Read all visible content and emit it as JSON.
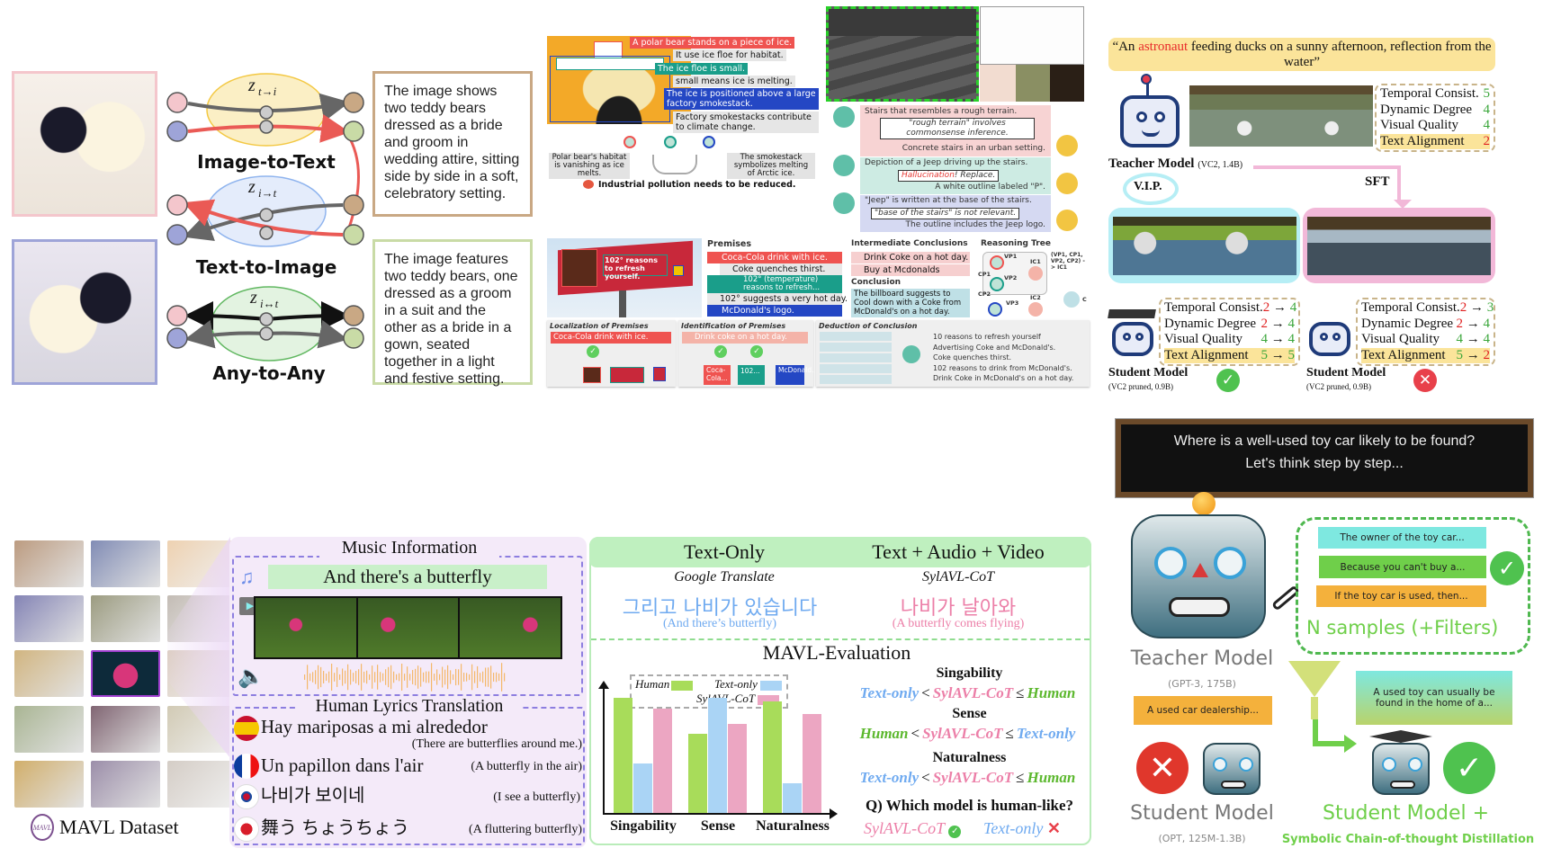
{
  "panel_multimodal": {
    "z_top": "z",
    "z_top_sub": "t→i",
    "z_mid": "z",
    "z_mid_sub": "i→t",
    "z_bot": "z",
    "z_bot_sub": "i↔t",
    "label_top": "Image-to-Text",
    "label_mid": "Text-to-Image",
    "label_bot": "Any-to-Any",
    "caption_1": "The image shows two teddy bears dressed as a bride and groom in wedding attire, sitting side by side in a soft, celebratory setting.",
    "caption_2": "The image features two teddy bears, one dressed as a groom in a suit and the other as a bride in a gown, seated together in a light and festive setting.",
    "colors": {
      "pink": "#f4c6cc",
      "blue": "#9ea4d8",
      "tan": "#c9a884",
      "green": "#c9dba6",
      "red_arrow": "#ea5a55"
    }
  },
  "panel_polar_bear": {
    "claims": [
      {
        "text": "A polar bear stands on a piece of ice.",
        "color": "#ef5350"
      },
      {
        "text": "It use ice floe for habitat.",
        "color": "#e6e6e6"
      },
      {
        "text": "The ice floe is small.",
        "color": "#1a9e8a"
      },
      {
        "text": "small means ice is melting.",
        "color": "#e6e6e6"
      },
      {
        "text": "The ice is positioned above a large factory smokestack.",
        "color": "#2447c4"
      },
      {
        "text": "Factory smokestacks contribute to climate change.",
        "color": "#e6e6e6"
      }
    ],
    "left_conclusion": "Polar bear's habitat is vanishing as ice melts.",
    "right_conclusion": "The smokestack symbolizes melting of Arctic ice.",
    "final": "Industrial pollution needs to be reduced."
  },
  "panel_stairs": {
    "rows": [
      {
        "first": "Stairs that resembles a rough terrain.",
        "note": "\"rough terrain\" involves commonsense inference.",
        "last": "Concrete stairs in an urban setting.",
        "color": "#f7d3d3"
      },
      {
        "first": "Depiction of a Jeep driving up the stairs.",
        "note_red": "Hallucination",
        "note": "! Replace.",
        "last": "A white outline labeled \"P\".",
        "color": "#cdebe3"
      },
      {
        "first": "\"Jeep\" is written at the base of the stairs.",
        "note": "\"base of the stairs\" is not relevant.",
        "last": "The outline includes the Jeep logo.",
        "color": "#d5d9f2"
      }
    ]
  },
  "panel_billboard": {
    "billboard_text": "102° reasons to refresh yourself.",
    "premises_title": "Premises",
    "premises": [
      {
        "text": "Coca-Cola drink with ice.",
        "color": "#ef5350"
      },
      {
        "text": "Coke quenches thirst.",
        "color": "#e8e8e8"
      },
      {
        "text": "102° (temperature) reasons to refresh...",
        "color": "#1a9e8a"
      },
      {
        "text": "102° suggests a very hot day.",
        "color": "#e8e8e8"
      },
      {
        "text": "McDonald's logo.",
        "color": "#2447c4"
      }
    ],
    "ic_title": "Intermediate Conclusions",
    "ics": [
      "Drink Coke on a hot day.",
      "Buy at Mcdonalds"
    ],
    "conclusion_title": "Conclusion",
    "conclusion": "The billboard suggests to Cool down with a Coke from McDonald's on a hot day.",
    "tree_title": "Reasoning Tree",
    "tree_nodes": [
      "VP1",
      "CP1",
      "VP2",
      "CP2",
      "VP3",
      "IC1",
      "IC2",
      "C"
    ],
    "tree_note": "(VP1, CP1, VP2, CP2) -> IC1",
    "localization_title": "Localization of Premises",
    "localization_query": "Coca-Cola drink with ice.",
    "identification_title": "Identification of Premises",
    "identification_query": "Drink coke on a hot day.",
    "identification_options": [
      "Coca-Cola...",
      "102...",
      "McDonald..."
    ],
    "deduction_title": "Deduction of Conclusion",
    "deduction_options": [
      "10 reasons to refresh yourself",
      "Advertising Coke and McDonald's.",
      "Coke quenches thirst.",
      "102 reasons to drink from McDonald's.",
      "Drink Coke in McDonald's on a hot day."
    ]
  },
  "panel_video_distill": {
    "prompt_pre": "“An ",
    "prompt_highlight": "astronaut",
    "prompt_post": " feeding ducks on a sunny afternoon, reflection from the water”",
    "teacher_label": "Teacher Model",
    "teacher_sub": "(VC2, 1.4B)",
    "teacher_scores": [
      {
        "name": "Temporal Consist.",
        "value": "5"
      },
      {
        "name": "Dynamic Degree",
        "value": "4"
      },
      {
        "name": "Visual Quality",
        "value": "4"
      },
      {
        "name": "Text Alignment",
        "value": "2"
      }
    ],
    "vip_label": "V.I.P.",
    "sft_label": "SFT",
    "student_left_scores": [
      {
        "name": "Temporal Consist.",
        "from": "2",
        "to": "4"
      },
      {
        "name": "Dynamic Degree",
        "from": "2",
        "to": "4"
      },
      {
        "name": "Visual Quality",
        "from": "4",
        "to": "4"
      },
      {
        "name": "Text Alignment",
        "from": "5",
        "to": "5"
      }
    ],
    "student_right_scores": [
      {
        "name": "Temporal Consist.",
        "from": "2",
        "to": "3"
      },
      {
        "name": "Dynamic Degree",
        "from": "2",
        "to": "4"
      },
      {
        "name": "Visual Quality",
        "from": "4",
        "to": "4"
      },
      {
        "name": "Text Alignment",
        "from": "5",
        "to": "2"
      }
    ],
    "arrow": "→",
    "student_label": "Student Model",
    "student_sub": "(VC2 pruned, 0.9B)"
  },
  "panel_mavl_dataset": {
    "dataset_label": "MAVL Dataset",
    "logo_text": "MAVL",
    "music_info_title": "Music Information",
    "lyric": "And there's a butterfly",
    "translation_title": "Human Lyrics Translation",
    "translations": [
      {
        "lang": "es",
        "text": "Hay mariposas a mi alrededor",
        "gloss": "(There are butterflies around me.)"
      },
      {
        "lang": "fr",
        "text": "Un papillon dans l'air",
        "gloss": "(A butterfly in the air)"
      },
      {
        "lang": "ko",
        "text": "나비가 보이네",
        "gloss": "(I see a butterfly)"
      },
      {
        "lang": "ja",
        "text": "舞う ちょうちょう",
        "gloss": "(A fluttering butterfly)"
      }
    ]
  },
  "panel_mavl_eval": {
    "header_left": "Text-Only",
    "header_right": "Text + Audio + Video",
    "left_model": "Google Translate",
    "right_model": "SylAVL-CoT",
    "left_output": "그리고 나비가 있습니다",
    "left_gloss": "(And there’s butterfly)",
    "right_output": "나비가 날아와",
    "right_gloss": "(A butterfly comes flying)",
    "eval_title": "MAVL-Evaluation",
    "results": [
      {
        "metric": "Singability",
        "parts": [
          "Text-only",
          "<",
          "SylAVL-CoT",
          "≤",
          "Human"
        ]
      },
      {
        "metric": "Sense",
        "parts": [
          "Human",
          "<",
          "SylAVL-CoT",
          "≤",
          "Text-only"
        ]
      },
      {
        "metric": "Naturalness",
        "parts": [
          "Text-only",
          "<",
          "SylAVL-CoT",
          "≤",
          "Human"
        ]
      }
    ],
    "question": "Q) Which model is human-like?",
    "answer_good": "SylAVL-CoT",
    "answer_bad": "Text-only",
    "colors": {
      "Human": "#a8dc5a",
      "Text-only": "#aad4f5",
      "SylAVL-CoT": "#eca6c2"
    }
  },
  "chart_data": {
    "type": "bar",
    "categories": [
      "Singability",
      "Sense",
      "Naturalness"
    ],
    "series": [
      {
        "name": "Human",
        "values": [
          1.0,
          0.69,
          0.97
        ]
      },
      {
        "name": "Text-only",
        "values": [
          0.43,
          1.0,
          0.26
        ]
      },
      {
        "name": "SylAVL-CoT",
        "values": [
          0.91,
          0.77,
          0.86
        ]
      }
    ],
    "title": "",
    "xlabel": "",
    "ylabel": "",
    "ylim": [
      0,
      1
    ],
    "grid": false,
    "legend": "top"
  },
  "panel_scotd": {
    "question": "Where is a well-used toy car likely to be found?",
    "prompt": "Let's think step by step...",
    "samples": [
      {
        "text": "The owner of the toy car...",
        "color": "#7ee8e0"
      },
      {
        "text": "Because you can't buy a...",
        "color": "#6fcf4a"
      },
      {
        "text": "If the toy car is used, then...",
        "color": "#f4b13c"
      }
    ],
    "samples_label": "N samples (+Filters)",
    "teacher_label": "Teacher Model",
    "teacher_sub": "(GPT-3, 175B)",
    "student_bubble": "A used car dealership...",
    "student_label": "Student Model",
    "student_sub": "(OPT, 125M-1.3B)",
    "distilled_bubble": "A used toy can usually be found in the home of a...",
    "distilled_label": "Student Model +",
    "distilled_sub": "Symbolic Chain-of-thought Distillation"
  }
}
